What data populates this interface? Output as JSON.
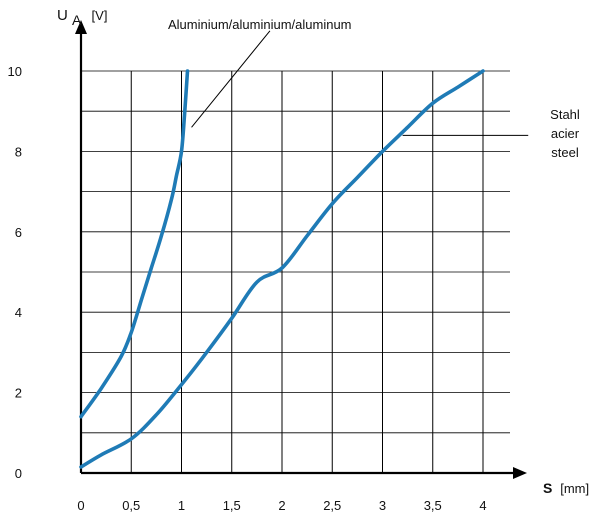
{
  "chart_data": {
    "type": "line",
    "xlabel": "S",
    "xunit": "[mm]",
    "ylabel_main": "U",
    "ylabel_sub": "A",
    "yunit": "[V]",
    "xlim": [
      0,
      4
    ],
    "ylim": [
      0,
      10
    ],
    "x_ticks": [
      {
        "value": 0,
        "label": "0"
      },
      {
        "value": 0.5,
        "label": "0,5"
      },
      {
        "value": 1,
        "label": "1"
      },
      {
        "value": 1.5,
        "label": "1,5"
      },
      {
        "value": 2,
        "label": "2"
      },
      {
        "value": 2.5,
        "label": "2,5"
      },
      {
        "value": 3,
        "label": "3"
      },
      {
        "value": 3.5,
        "label": "3,5"
      },
      {
        "value": 4,
        "label": "4"
      }
    ],
    "y_ticks": [
      {
        "value": 0,
        "label": "0"
      },
      {
        "value": 2,
        "label": "2"
      },
      {
        "value": 4,
        "label": "4"
      },
      {
        "value": 6,
        "label": "6"
      },
      {
        "value": 8,
        "label": "8"
      },
      {
        "value": 10,
        "label": "10"
      }
    ],
    "x_grid": [
      0,
      0.5,
      1,
      1.5,
      2,
      2.5,
      3,
      3.5,
      4
    ],
    "y_grid": [
      0,
      1,
      2,
      3,
      4,
      5,
      6,
      7,
      8,
      9,
      10
    ],
    "grid": true,
    "series_color": "#1f7bb6",
    "series": [
      {
        "id": "aluminium",
        "points": [
          [
            0.0,
            1.4
          ],
          [
            0.2,
            2.1
          ],
          [
            0.4,
            2.9
          ],
          [
            0.5,
            3.5
          ],
          [
            0.6,
            4.3
          ],
          [
            0.7,
            5.1
          ],
          [
            0.8,
            5.9
          ],
          [
            0.9,
            6.8
          ],
          [
            0.95,
            7.4
          ],
          [
            1.0,
            8.0
          ],
          [
            1.03,
            8.9
          ],
          [
            1.06,
            10.0
          ]
        ]
      },
      {
        "id": "steel",
        "points": [
          [
            0.0,
            0.15
          ],
          [
            0.2,
            0.45
          ],
          [
            0.5,
            0.85
          ],
          [
            0.75,
            1.45
          ],
          [
            1.0,
            2.2
          ],
          [
            1.25,
            3.0
          ],
          [
            1.5,
            3.85
          ],
          [
            1.75,
            4.75
          ],
          [
            2.0,
            5.1
          ],
          [
            2.25,
            5.9
          ],
          [
            2.5,
            6.7
          ],
          [
            2.75,
            7.35
          ],
          [
            3.0,
            8.0
          ],
          [
            3.25,
            8.6
          ],
          [
            3.5,
            9.2
          ],
          [
            3.75,
            9.6
          ],
          [
            4.0,
            10.0
          ]
        ]
      }
    ],
    "annotations": [
      {
        "id": "aluminium-label",
        "lines": [
          "Aluminium/aluminium/aluminum"
        ],
        "leader_from": [
          1.88,
          11.0
        ],
        "leader_to": [
          1.1,
          8.6
        ]
      },
      {
        "id": "steel-label",
        "lines": [
          "Stahl",
          "acier",
          "steel"
        ],
        "leader_from": [
          4.45,
          8.4
        ],
        "leader_to": [
          3.2,
          8.4
        ]
      }
    ]
  }
}
